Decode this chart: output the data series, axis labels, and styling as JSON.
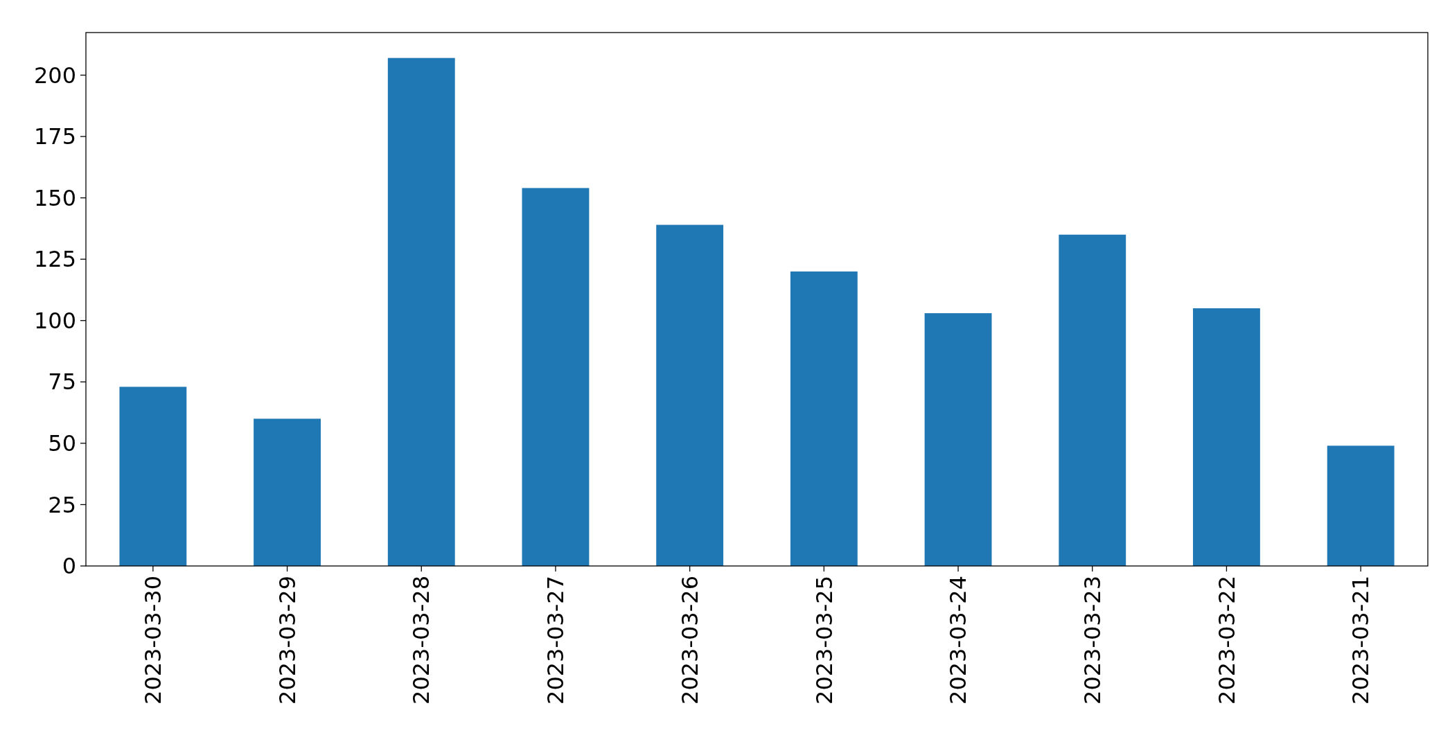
{
  "chart_data": {
    "type": "bar",
    "categories": [
      "2023-03-30",
      "2023-03-29",
      "2023-03-28",
      "2023-03-27",
      "2023-03-26",
      "2023-03-25",
      "2023-03-24",
      "2023-03-23",
      "2023-03-22",
      "2023-03-21"
    ],
    "values": [
      73,
      60,
      207,
      154,
      139,
      120,
      103,
      135,
      105,
      49
    ],
    "color": "#1f77b4",
    "ylim": [
      0,
      217.35
    ],
    "yticks": [
      0,
      25,
      50,
      75,
      100,
      125,
      150,
      175,
      200
    ],
    "grid": false
  }
}
